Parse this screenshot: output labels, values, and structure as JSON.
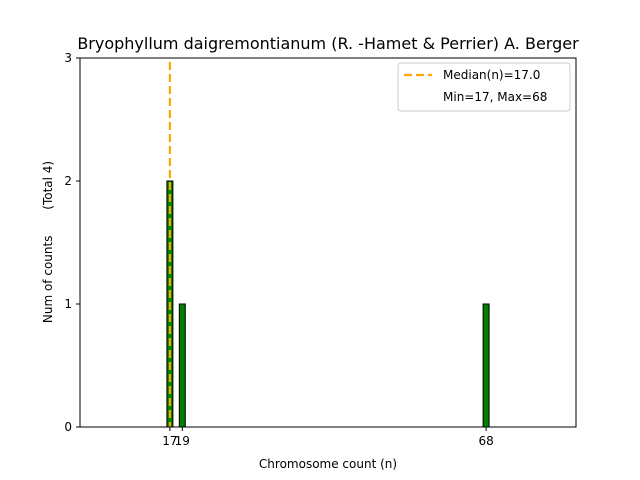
{
  "chart_data": {
    "type": "bar",
    "title": "Bryophyllum daigremontianum (R. -Hamet & Perrier) A. Berger",
    "xlabel": "Chromosome count (n)",
    "ylabel": "Num of counts",
    "ylabel_note": "(Total 4)",
    "x": [
      17,
      19,
      68
    ],
    "values": [
      2,
      1,
      1
    ],
    "xticks": [
      "17",
      "19",
      "68"
    ],
    "yticks": [
      "0",
      "1",
      "2",
      "3"
    ],
    "xlim": [
      2.5,
      82.5
    ],
    "ylim": [
      0,
      3
    ],
    "bar_color": "#008000",
    "bar_edge_color": "#000000",
    "median": {
      "value": 17.0,
      "color": "#FFA500",
      "label": "Median(n)=17.0"
    },
    "legend": {
      "position": "top-right",
      "entries": [
        "Median(n)=17.0",
        "Min=17, Max=68"
      ]
    },
    "grid": false
  }
}
